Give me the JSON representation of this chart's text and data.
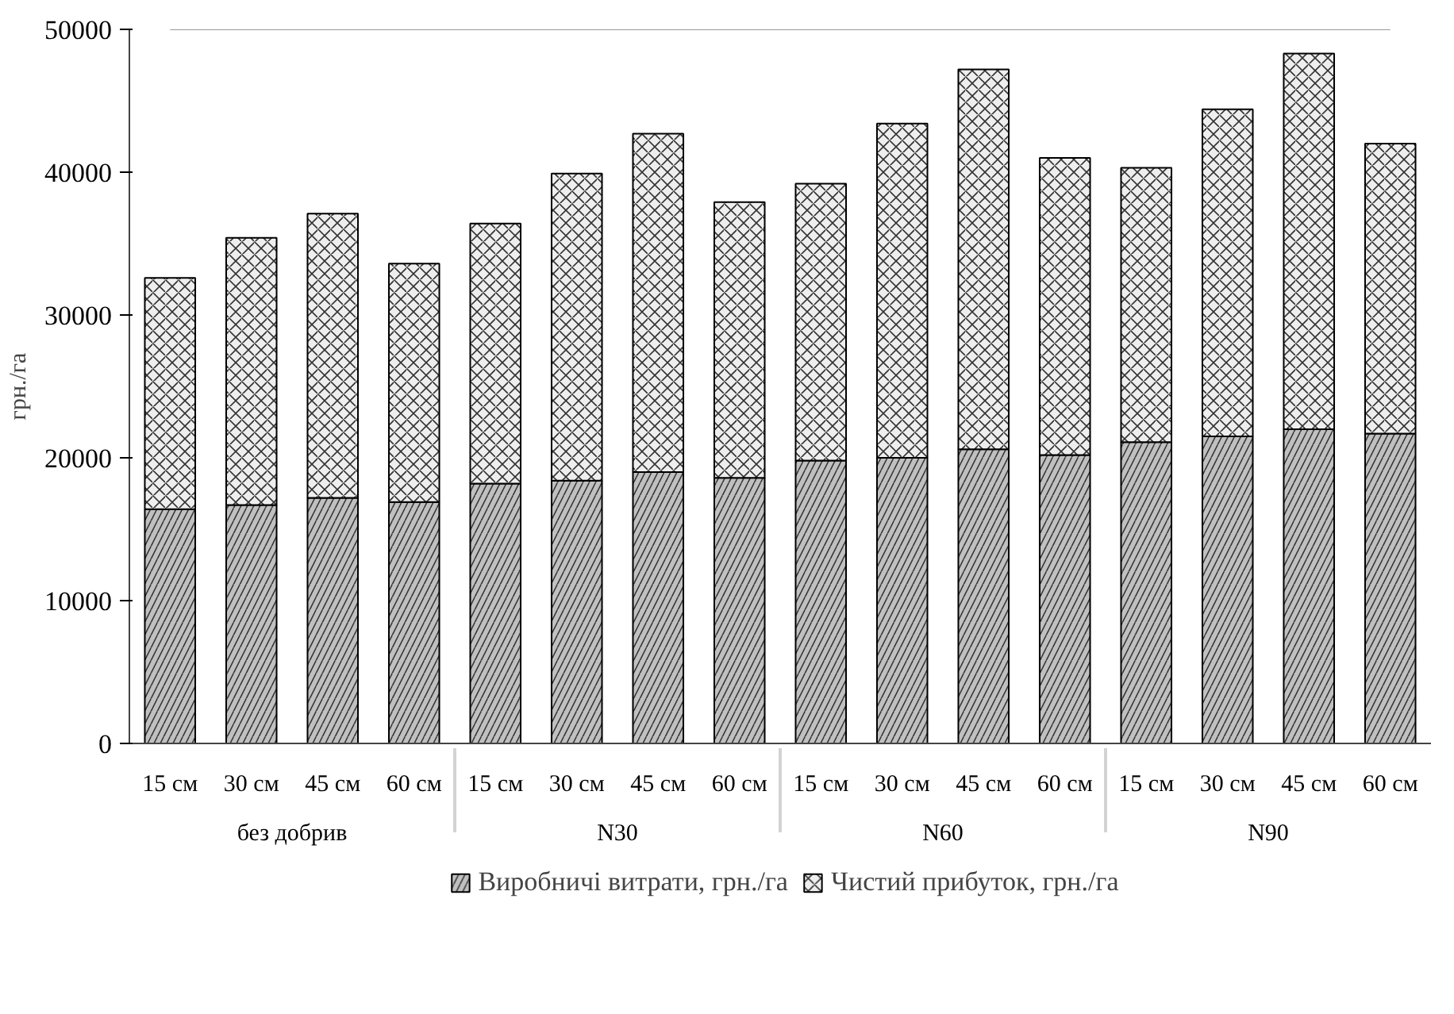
{
  "chart_data": {
    "type": "bar",
    "stacked": true,
    "ylabel": "грн./га",
    "categories": [
      "15 см",
      "30 см",
      "45 см",
      "60 см",
      "15 см",
      "30 см",
      "45 см",
      "60 см",
      "15 см",
      "30 см",
      "45 см",
      "60 см",
      "15 см",
      "30 см",
      "45 см",
      "60 см"
    ],
    "annotations": [
      "без добрив",
      "N30",
      "N60",
      "N90"
    ],
    "series": [
      {
        "name": "Виробничі витрати, грн./га",
        "color": "#c0c0c0",
        "values": [
          16400,
          16700,
          17200,
          16900,
          18200,
          18400,
          19000,
          18600,
          19800,
          20000,
          20600,
          20200,
          21100,
          21500,
          22000,
          21700
        ]
      },
      {
        "name": "Чистий прибуток, грн./га",
        "color": "#eeeeee",
        "values": [
          16200,
          18700,
          19900,
          16700,
          18200,
          21500,
          23700,
          19300,
          19400,
          23400,
          26600,
          20800,
          19200,
          22900,
          26300,
          20300
        ]
      }
    ],
    "ylim": [
      0,
      50000
    ],
    "yticks": [
      0,
      10000,
      20000,
      30000,
      40000,
      50000
    ],
    "grid": false,
    "legend": "bottom"
  }
}
